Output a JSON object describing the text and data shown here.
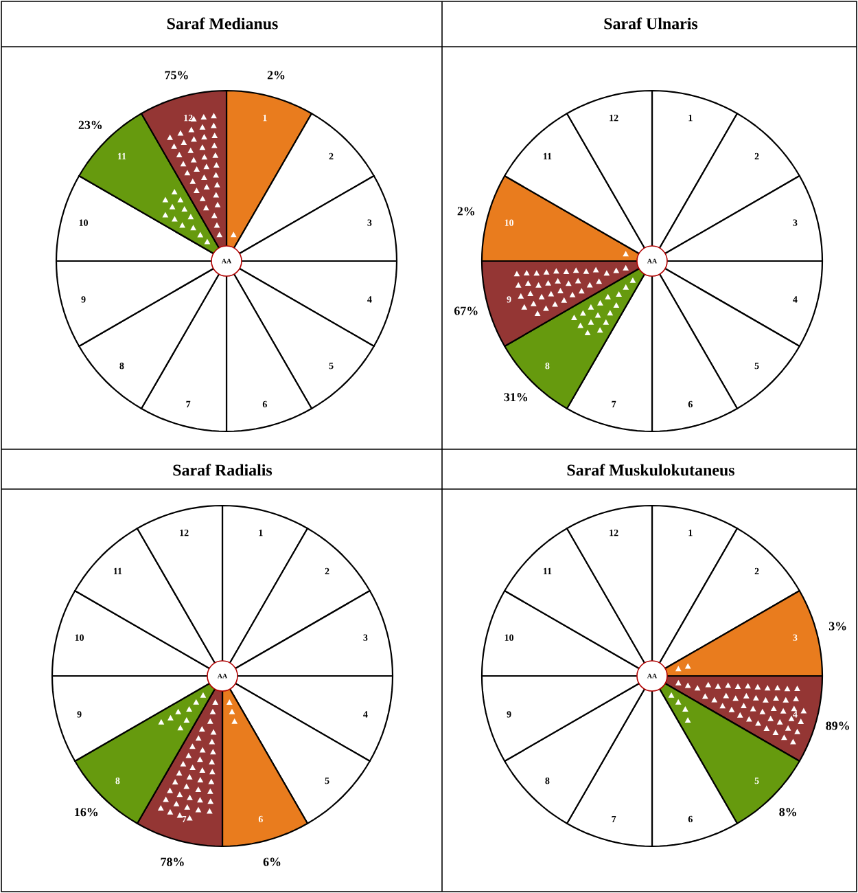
{
  "chart_data": [
    {
      "type": "other",
      "title": "Saraf Medianus",
      "categories": [
        "1",
        "2",
        "3",
        "4",
        "5",
        "6",
        "7",
        "8",
        "9",
        "10",
        "11",
        "12"
      ],
      "values": [
        2,
        null,
        null,
        null,
        null,
        null,
        null,
        null,
        null,
        null,
        23,
        75
      ],
      "value_labels": [
        "2%",
        null,
        null,
        null,
        null,
        null,
        null,
        null,
        null,
        null,
        "23%",
        "75%"
      ],
      "colors": [
        "#e97c1e",
        "#ffffff",
        "#ffffff",
        "#ffffff",
        "#ffffff",
        "#ffffff",
        "#ffffff",
        "#ffffff",
        "#ffffff",
        "#ffffff",
        "#669a0e",
        "#943634"
      ],
      "annotations": [
        "AA"
      ]
    },
    {
      "type": "other",
      "title": "Saraf Ulnaris",
      "categories": [
        "1",
        "2",
        "3",
        "4",
        "5",
        "6",
        "7",
        "8",
        "9",
        "10",
        "11",
        "12"
      ],
      "values": [
        null,
        null,
        null,
        null,
        null,
        null,
        null,
        31,
        67,
        2,
        null,
        null
      ],
      "value_labels": [
        null,
        null,
        null,
        null,
        null,
        null,
        null,
        "31%",
        "67%",
        "2%",
        null,
        null
      ],
      "colors": [
        "#ffffff",
        "#ffffff",
        "#ffffff",
        "#ffffff",
        "#ffffff",
        "#ffffff",
        "#ffffff",
        "#669a0e",
        "#943634",
        "#e97c1e",
        "#ffffff",
        "#ffffff"
      ],
      "annotations": [
        "AA"
      ]
    },
    {
      "type": "other",
      "title": "Saraf Radialis",
      "categories": [
        "1",
        "2",
        "3",
        "4",
        "5",
        "6",
        "7",
        "8",
        "9",
        "10",
        "11",
        "12"
      ],
      "values": [
        null,
        null,
        null,
        null,
        null,
        6,
        78,
        16,
        null,
        null,
        null,
        null
      ],
      "value_labels": [
        null,
        null,
        null,
        null,
        null,
        "6%",
        "78%",
        "16%",
        null,
        null,
        null,
        null
      ],
      "colors": [
        "#ffffff",
        "#ffffff",
        "#ffffff",
        "#ffffff",
        "#ffffff",
        "#e97c1e",
        "#943634",
        "#669a0e",
        "#ffffff",
        "#ffffff",
        "#ffffff",
        "#ffffff"
      ],
      "annotations": [
        "AA"
      ]
    },
    {
      "type": "other",
      "title": "Saraf Muskulokutaneus",
      "categories": [
        "1",
        "2",
        "3",
        "4",
        "5",
        "6",
        "7",
        "8",
        "9",
        "10",
        "11",
        "12"
      ],
      "values": [
        null,
        null,
        3,
        89,
        8,
        null,
        null,
        null,
        null,
        null,
        null,
        null
      ],
      "value_labels": [
        null,
        null,
        "3%",
        "89%",
        "8%",
        null,
        null,
        null,
        null,
        null,
        null,
        null
      ],
      "colors": [
        "#ffffff",
        "#ffffff",
        "#e97c1e",
        "#943634",
        "#669a0e",
        "#ffffff",
        "#ffffff",
        "#ffffff",
        "#ffffff",
        "#ffffff",
        "#ffffff",
        "#ffffff"
      ],
      "annotations": [
        "AA"
      ]
    }
  ]
}
